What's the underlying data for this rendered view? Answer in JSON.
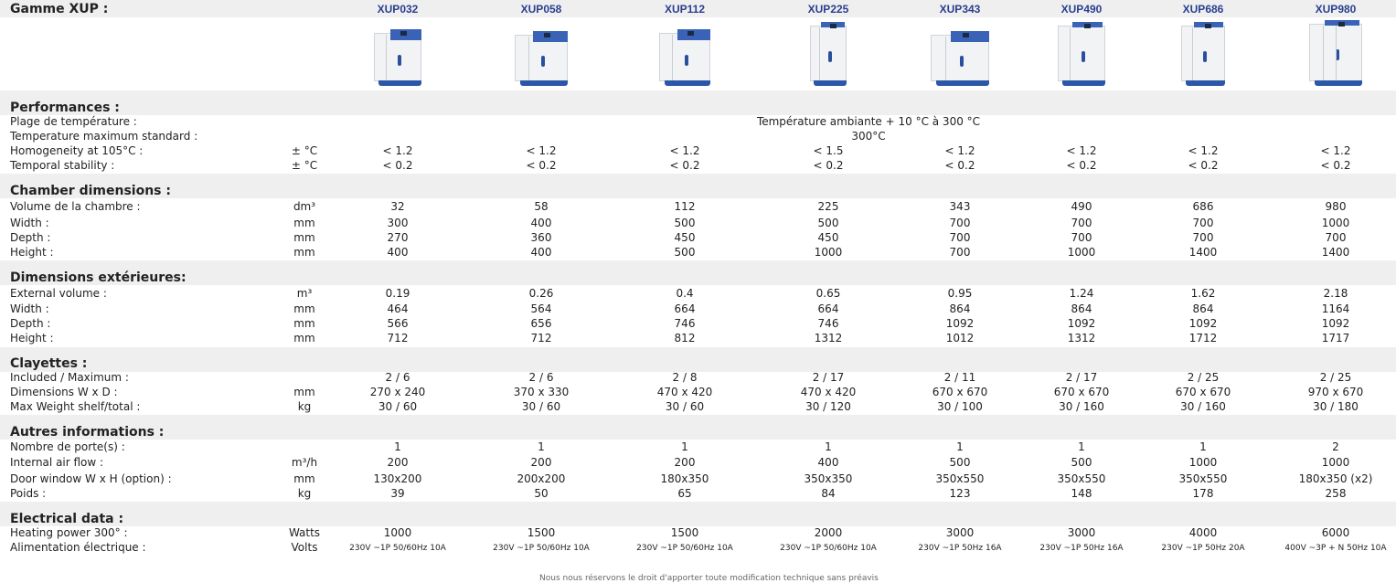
{
  "header": {
    "title": "Gamme XUP :"
  },
  "models": [
    "XUP032",
    "XUP058",
    "XUP112",
    "XUP225",
    "XUP343",
    "XUP490",
    "XUP686",
    "XUP980"
  ],
  "sections": {
    "performances": {
      "title": "Performances :",
      "temp_range": {
        "label": "Plage de température :",
        "value": "Température ambiante + 10 °C à 300 °C"
      },
      "temp_max": {
        "label": "Temperature maximum standard :",
        "value": "300°C"
      },
      "homogeneity": {
        "label": "Homogeneity at 105°C :",
        "unit": "± °C",
        "values": [
          "< 1.2",
          "< 1.2",
          "< 1.2",
          "< 1.5",
          "< 1.2",
          "< 1.2",
          "< 1.2",
          "< 1.2"
        ]
      },
      "temporal": {
        "label": "Temporal stability :",
        "unit": "± °C",
        "values": [
          "< 0.2",
          "< 0.2",
          "< 0.2",
          "< 0.2",
          "< 0.2",
          "< 0.2",
          "< 0.2",
          "< 0.2"
        ]
      }
    },
    "chamber": {
      "title": "Chamber dimensions :",
      "rows": [
        {
          "label": "Volume de la chambre :",
          "unit": "dm³",
          "values": [
            "32",
            "58",
            "112",
            "225",
            "343",
            "490",
            "686",
            "980"
          ]
        },
        {
          "label": "Width :",
          "unit": "mm",
          "values": [
            "300",
            "400",
            "500",
            "500",
            "700",
            "700",
            "700",
            "1000"
          ]
        },
        {
          "label": "Depth :",
          "unit": "mm",
          "values": [
            "270",
            "360",
            "450",
            "450",
            "700",
            "700",
            "700",
            "700"
          ]
        },
        {
          "label": "Height :",
          "unit": "mm",
          "values": [
            "400",
            "400",
            "500",
            "1000",
            "700",
            "1000",
            "1400",
            "1400"
          ]
        }
      ]
    },
    "exterior": {
      "title": "Dimensions extérieures:",
      "rows": [
        {
          "label": "External volume :",
          "unit": "m³",
          "values": [
            "0.19",
            "0.26",
            "0.4",
            "0.65",
            "0.95",
            "1.24",
            "1.62",
            "2.18"
          ]
        },
        {
          "label": "Width :",
          "unit": "mm",
          "values": [
            "464",
            "564",
            "664",
            "664",
            "864",
            "864",
            "864",
            "1164"
          ]
        },
        {
          "label": "Depth :",
          "unit": "mm",
          "values": [
            "566",
            "656",
            "746",
            "746",
            "1092",
            "1092",
            "1092",
            "1092"
          ]
        },
        {
          "label": "Height :",
          "unit": "mm",
          "values": [
            "712",
            "712",
            "812",
            "1312",
            "1012",
            "1312",
            "1712",
            "1717"
          ]
        }
      ]
    },
    "shelves": {
      "title": "Clayettes :",
      "rows": [
        {
          "label": "Included / Maximum :",
          "unit": "",
          "values": [
            "2 / 6",
            "2 / 6",
            "2 / 8",
            "2 / 17",
            "2 / 11",
            "2 / 17",
            "2 / 25",
            "2 / 25"
          ]
        },
        {
          "label": "Dimensions W x D :",
          "unit": "mm",
          "values": [
            "270 x 240",
            "370 x 330",
            "470 x 420",
            "470 x 420",
            "670 x 670",
            "670 x 670",
            "670 x 670",
            "970 x 670"
          ]
        },
        {
          "label": "Max Weight shelf/total :",
          "unit": "kg",
          "values": [
            "30 / 60",
            "30 / 60",
            "30 / 60",
            "30 / 120",
            "30 / 100",
            "30 / 160",
            "30 / 160",
            "30 / 180"
          ]
        }
      ]
    },
    "other": {
      "title": "Autres informations :",
      "rows": [
        {
          "label": "Nombre de porte(s) :",
          "unit": "",
          "values": [
            "1",
            "1",
            "1",
            "1",
            "1",
            "1",
            "1",
            "2"
          ]
        },
        {
          "label": "Internal air flow :",
          "unit": "m³/h",
          "values": [
            "200",
            "200",
            "200",
            "400",
            "500",
            "500",
            "1000",
            "1000"
          ]
        },
        {
          "label": "Door window W x H (option) :",
          "unit": "mm",
          "values": [
            "130x200",
            "200x200",
            "180x350",
            "350x350",
            "350x550",
            "350x550",
            "350x550",
            "180x350 (x2)"
          ]
        },
        {
          "label": "Poids :",
          "unit": "kg",
          "values": [
            "39",
            "50",
            "65",
            "84",
            "123",
            "148",
            "178",
            "258"
          ]
        }
      ]
    },
    "electrical": {
      "title": "Electrical data :",
      "rows": [
        {
          "label": "Heating power 300° :",
          "unit": "Watts",
          "values": [
            "1000",
            "1500",
            "1500",
            "2000",
            "3000",
            "3000",
            "4000",
            "6000"
          ]
        },
        {
          "label": "Alimentation électrique :",
          "unit": "Volts",
          "small": true,
          "values": [
            "230V ~1P 50/60Hz 10A",
            "230V ~1P 50/60Hz 10A",
            "230V ~1P 50/60Hz 10A",
            "230V ~1P 50/60Hz 10A",
            "230V ~1P 50Hz 16A",
            "230V ~1P 50Hz 16A",
            "230V ~1P 50Hz 20A",
            "400V ~3P + N 50Hz 10A"
          ]
        }
      ]
    }
  },
  "footnote": "Nous nous réservons le droit d'apporter toute modification technique sans préavis",
  "colors": {
    "band": "#efefef",
    "model_text": "#2a3f8f",
    "oven_blue": "#3a63b8"
  }
}
